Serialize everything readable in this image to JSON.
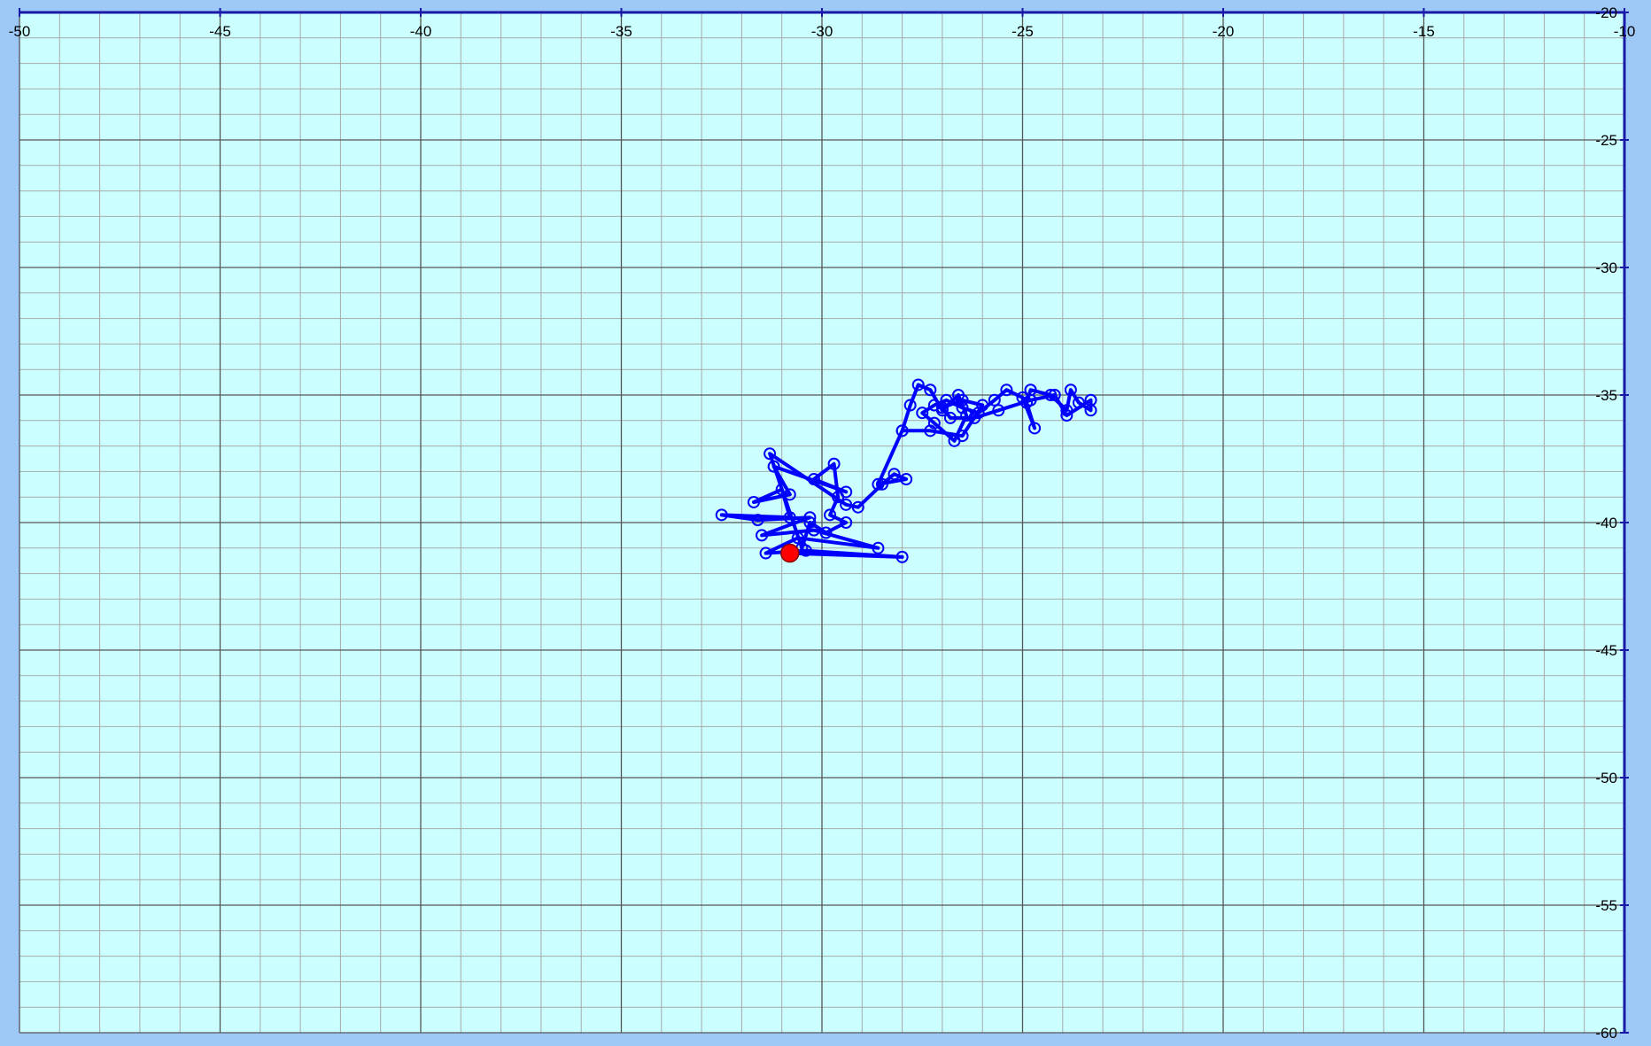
{
  "chart_data": {
    "type": "scatter",
    "title": "",
    "xlabel": "",
    "ylabel": "",
    "xlim": [
      -50,
      -10
    ],
    "ylim": [
      -60,
      -20
    ],
    "x_ticks": [
      -50,
      -45,
      -40,
      -35,
      -30,
      -25,
      -20,
      -15,
      -10
    ],
    "y_ticks": [
      -20,
      -25,
      -30,
      -35,
      -40,
      -45,
      -50,
      -55,
      -60
    ],
    "x_tick_labels": [
      "-50",
      "-45",
      "-40",
      "-35",
      "-30",
      "-25",
      "-20",
      "-15",
      "-10"
    ],
    "y_tick_labels": [
      "-20",
      "-25",
      "-30",
      "-35",
      "-40",
      "-45",
      "-50",
      "-55",
      "-60"
    ],
    "minor_step": 1,
    "grid": true,
    "colors": {
      "plot_background": "#ccffff",
      "page_background": "#9ec9f7",
      "minor_grid": "#a8a8a8",
      "major_grid": "#555555",
      "axis": "#1a1aa8",
      "series": "#0000ff",
      "current_point": "#ff0000"
    },
    "series": [
      {
        "points": [
          [
            -30.8,
            -41.2
          ],
          [
            -28.0,
            -41.35
          ],
          [
            -30.4,
            -41.1
          ],
          [
            -31.4,
            -41.2
          ],
          [
            -30.6,
            -40.6
          ],
          [
            -28.6,
            -41.0
          ],
          [
            -30.2,
            -40.3
          ],
          [
            -31.5,
            -40.5
          ],
          [
            -30.3,
            -39.8
          ],
          [
            -31.6,
            -39.9
          ],
          [
            -32.5,
            -39.7
          ],
          [
            -30.8,
            -39.8
          ],
          [
            -31.0,
            -38.7
          ],
          [
            -31.7,
            -39.2
          ],
          [
            -30.8,
            -38.9
          ],
          [
            -31.2,
            -37.8
          ],
          [
            -29.4,
            -38.8
          ],
          [
            -30.2,
            -38.3
          ],
          [
            -29.7,
            -37.7
          ],
          [
            -29.6,
            -39.0
          ],
          [
            -29.8,
            -39.7
          ],
          [
            -29.4,
            -40.0
          ],
          [
            -29.9,
            -40.4
          ],
          [
            -30.3,
            -40.0
          ],
          [
            -30.5,
            -41.0
          ],
          [
            -31.3,
            -37.3
          ],
          [
            -29.4,
            -39.3
          ],
          [
            -29.1,
            -39.4
          ],
          [
            -28.5,
            -38.5
          ],
          [
            -28.2,
            -38.1
          ],
          [
            -27.9,
            -38.3
          ],
          [
            -28.6,
            -38.5
          ],
          [
            -28.0,
            -36.4
          ],
          [
            -27.8,
            -35.4
          ],
          [
            -27.6,
            -34.6
          ],
          [
            -27.3,
            -34.8
          ],
          [
            -27.0,
            -35.6
          ],
          [
            -26.6,
            -35.0
          ],
          [
            -26.4,
            -35.8
          ],
          [
            -26.7,
            -36.8
          ],
          [
            -27.2,
            -36.1
          ],
          [
            -27.5,
            -35.7
          ],
          [
            -27.2,
            -35.4
          ],
          [
            -26.9,
            -35.2
          ],
          [
            -26.5,
            -35.5
          ],
          [
            -26.1,
            -35.7
          ],
          [
            -25.7,
            -35.2
          ],
          [
            -25.4,
            -34.8
          ],
          [
            -25.0,
            -35.1
          ],
          [
            -24.7,
            -36.3
          ],
          [
            -24.9,
            -35.3
          ],
          [
            -24.8,
            -34.8
          ],
          [
            -24.3,
            -35.0
          ],
          [
            -23.9,
            -35.6
          ],
          [
            -23.8,
            -34.8
          ],
          [
            -23.6,
            -35.3
          ],
          [
            -23.3,
            -35.6
          ],
          [
            -23.3,
            -35.2
          ],
          [
            -23.9,
            -35.8
          ],
          [
            -24.2,
            -35.0
          ],
          [
            -24.8,
            -35.2
          ],
          [
            -25.6,
            -35.6
          ],
          [
            -26.2,
            -35.9
          ],
          [
            -26.8,
            -35.9
          ],
          [
            -27.0,
            -35.5
          ],
          [
            -26.5,
            -35.2
          ],
          [
            -26.0,
            -35.4
          ],
          [
            -26.5,
            -36.6
          ],
          [
            -27.3,
            -36.4
          ],
          [
            -28.0,
            -36.4
          ]
        ]
      }
    ],
    "current_point": [
      -30.8,
      -41.2
    ]
  }
}
